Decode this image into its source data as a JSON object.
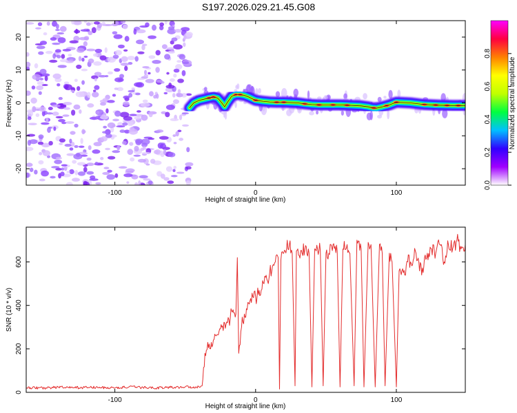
{
  "title": "S197.2026.029.21.45.G08",
  "chart_data": [
    {
      "type": "heatmap",
      "name": "spectrogram",
      "xlabel": "Height of straight line (km)",
      "ylabel": "Frequency (Hz)",
      "xlim": [
        -163,
        149
      ],
      "ylim": [
        -25,
        25
      ],
      "xticks": [
        -100,
        0,
        100
      ],
      "yticks": [
        -20,
        -10,
        0,
        10,
        20
      ],
      "colorbar": {
        "label": "Normalized spectral amplitude",
        "range": [
          0,
          1
        ],
        "ticks": [
          "0.0",
          "0.2",
          "0.4",
          "0.6",
          "0.8"
        ],
        "colors": [
          "#ffffff",
          "#a000ff",
          "#3000ff",
          "#00c0ff",
          "#00ff40",
          "#c0ff00",
          "#ffff00",
          "#ff8000",
          "#ff0040",
          "#ff00ff"
        ]
      },
      "noise_region_km": [
        -163,
        -47
      ],
      "signal_start_km": -47,
      "ridge": {
        "x": [
          -47,
          -44,
          -40,
          -36,
          -33,
          -30,
          -27,
          -24,
          -22,
          -20,
          -17,
          -14,
          -11,
          -8,
          -5,
          0,
          5,
          10,
          15,
          20,
          25,
          30,
          35,
          40,
          45,
          50,
          55,
          60,
          65,
          70,
          75,
          80,
          83,
          86,
          90,
          95,
          100,
          110,
          120,
          130,
          140,
          149
        ],
        "y": [
          -1.5,
          0,
          0.8,
          1.2,
          1.5,
          1.8,
          1.5,
          0,
          -1.2,
          0.2,
          2,
          2.5,
          2.5,
          2.3,
          1.8,
          0.8,
          0.5,
          0.3,
          0.2,
          0.2,
          0.1,
          0,
          -0.3,
          -0.5,
          -0.6,
          -0.6,
          -0.6,
          -0.6,
          -0.7,
          -0.8,
          -0.9,
          -1.2,
          -1.5,
          -1.6,
          -1.2,
          -0.6,
          0.2,
          0,
          -0.5,
          -0.7,
          -0.8,
          -0.8
        ]
      }
    },
    {
      "type": "line",
      "name": "snr",
      "xlabel": "Height of straight line (km)",
      "ylabel": "SNR (10 * v/v)",
      "xlim": [
        -163,
        149
      ],
      "ylim": [
        0,
        760
      ],
      "xticks": [
        -100,
        0,
        100
      ],
      "yticks": [
        0,
        200,
        400,
        600
      ],
      "color": "#e32b2b",
      "series": [
        {
          "name": "SNR",
          "x": [
            -163,
            -150,
            -140,
            -130,
            -120,
            -110,
            -100,
            -90,
            -80,
            -70,
            -60,
            -50,
            -40,
            -38,
            -36,
            -34,
            -32,
            -30,
            -28,
            -26,
            -24,
            -22,
            -20,
            -18,
            -16,
            -14,
            -13,
            -12,
            -10,
            -8,
            -6,
            -4,
            -2,
            0,
            2,
            4,
            6,
            8,
            10,
            12,
            14,
            16,
            17,
            18,
            20,
            22,
            24,
            26,
            28,
            29,
            30,
            33,
            36,
            38,
            40,
            42,
            44,
            46,
            48,
            50,
            52,
            55,
            58,
            60,
            62,
            65,
            67,
            70,
            72,
            75,
            77,
            80,
            82,
            85,
            88,
            90,
            92,
            95,
            97,
            100,
            102,
            104,
            106,
            108,
            110,
            114,
            116,
            118,
            120,
            122,
            125,
            128,
            131,
            134,
            137,
            140,
            143,
            146,
            149
          ],
          "y": [
            22,
            20,
            24,
            21,
            23,
            22,
            20,
            25,
            22,
            21,
            23,
            25,
            24,
            30,
            180,
            230,
            200,
            240,
            260,
            280,
            300,
            320,
            320,
            340,
            380,
            360,
            620,
            180,
            300,
            360,
            380,
            420,
            440,
            440,
            450,
            470,
            500,
            520,
            550,
            580,
            600,
            620,
            15,
            610,
            640,
            660,
            680,
            640,
            30,
            650,
            660,
            640,
            670,
            640,
            25,
            660,
            660,
            650,
            30,
            640,
            640,
            680,
            650,
            25,
            660,
            680,
            640,
            30,
            700,
            660,
            25,
            690,
            680,
            25,
            680,
            640,
            30,
            640,
            600,
            25,
            560,
            560,
            540,
            600,
            600,
            640,
            600,
            540,
            620,
            640,
            660,
            640,
            680,
            600,
            680,
            660,
            700,
            660,
            680
          ]
        }
      ]
    }
  ]
}
